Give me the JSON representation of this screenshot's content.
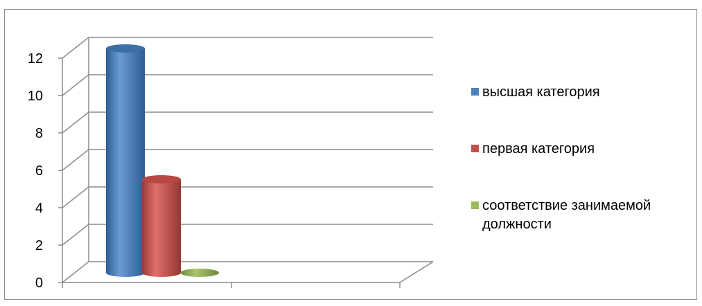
{
  "chart_data": {
    "type": "bar",
    "title": "",
    "xlabel": "",
    "ylabel": "",
    "categories": [
      ""
    ],
    "ylim": [
      0,
      12
    ],
    "yticks": [
      "0",
      "2",
      "4",
      "6",
      "8",
      "10",
      "12"
    ],
    "series": [
      {
        "name": "высшая категория",
        "values": [
          12
        ],
        "color": "#4f81bd"
      },
      {
        "name": "первая категория",
        "values": [
          5
        ],
        "color": "#c0504d"
      },
      {
        "name": "соответствие занимаемой должности",
        "values": [
          0
        ],
        "color": "#9bbb59"
      }
    ],
    "style": "3d-cylinder",
    "grid": true,
    "legend_position": "right"
  }
}
